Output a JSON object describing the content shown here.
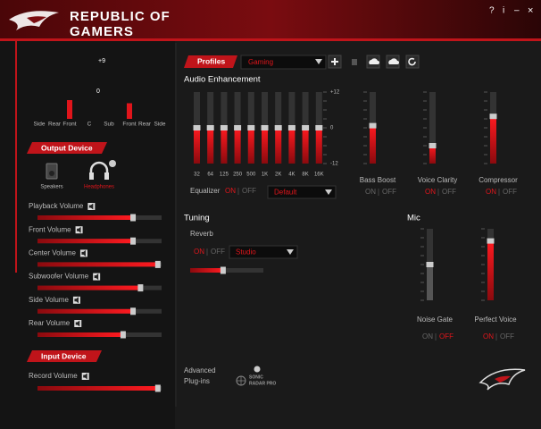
{
  "header": {
    "title": [
      "REPUBLIC OF",
      "GAMERS"
    ],
    "controls": [
      "?",
      "i",
      "–",
      "×"
    ]
  },
  "speaker_meter": {
    "scale": [
      "+9",
      "0"
    ],
    "channels": [
      "Side",
      "Rear",
      "Front",
      "C",
      "Sub",
      "Front",
      "Rear",
      "Side"
    ],
    "levels": [
      0,
      0,
      30,
      0,
      0,
      25,
      0,
      0
    ]
  },
  "output_device": {
    "title": "Output Device",
    "devices": [
      "Speakers",
      "Headphones"
    ],
    "selected": 1
  },
  "output_sliders": [
    {
      "label": "Playback Volume",
      "level": 77
    },
    {
      "label": "Front Volume",
      "level": 77
    },
    {
      "label": "Center Volume",
      "level": 97
    },
    {
      "label": "Subwoofer Volume",
      "level": 83
    },
    {
      "label": "Side Volume",
      "level": 77
    },
    {
      "label": "Rear Volume",
      "level": 69
    }
  ],
  "input_device": {
    "title": "Input Device",
    "sliders": [
      {
        "label": "Record Volume",
        "level": 97
      }
    ]
  },
  "profiles": {
    "title": "Profiles",
    "selected": "Gaming"
  },
  "audio_enhancement": {
    "title": "Audio Enhancement",
    "eq_scale": [
      "+12",
      "0",
      "-12"
    ],
    "range": [
      -12,
      12
    ],
    "bands": [
      "32",
      "64",
      "125",
      "250",
      "500",
      "1K",
      "2K",
      "4K",
      "8K",
      "16K"
    ],
    "band_levels": [
      0,
      0,
      0,
      0,
      0,
      0,
      0,
      0,
      0,
      0
    ],
    "equalizer": {
      "label": "Equalizer",
      "toggle": [
        "ON",
        "OFF"
      ],
      "enabled": true,
      "preset": "Default"
    },
    "effects": [
      {
        "name": "Bass Boost",
        "level": 53,
        "toggle": [
          "ON",
          "OFF"
        ],
        "enabled": null
      },
      {
        "name": "Voice Clarity",
        "level": 25,
        "toggle": [
          "ON",
          "OFF"
        ],
        "enabled": true
      },
      {
        "name": "Compressor",
        "level": 66,
        "toggle": [
          "ON",
          "OFF"
        ],
        "enabled": true
      }
    ]
  },
  "tuning": {
    "title": "Tuning",
    "reverb": {
      "label": "Reverb",
      "toggle": [
        "ON",
        "OFF"
      ],
      "enabled": true,
      "preset": "Studio",
      "level": 45
    }
  },
  "mic": {
    "title": "Mic",
    "effects": [
      {
        "name": "Noise Gate",
        "level": 50,
        "toggle": [
          "ON",
          "OFF"
        ],
        "enabled": false
      },
      {
        "name": "Perfect Voice",
        "level": 83,
        "toggle": [
          "ON",
          "OFF"
        ],
        "enabled": true
      }
    ]
  },
  "plugins": {
    "title": [
      "Advanced",
      "Plug-ins"
    ],
    "items": [
      [
        "SONIC",
        "RADAR PRO"
      ]
    ]
  }
}
